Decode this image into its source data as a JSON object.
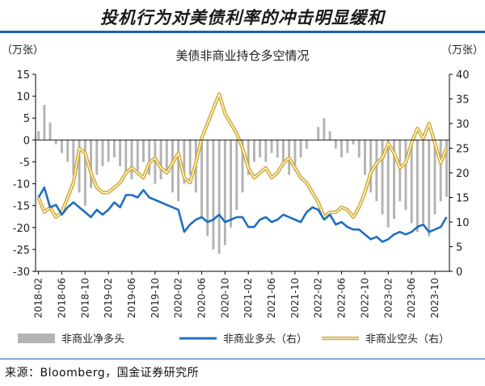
{
  "page": {
    "headline": "投机行为对美债利率的冲击明显缓和",
    "source": "来源：Bloomberg，国金证券研究所"
  },
  "chart_data": {
    "type": "line",
    "title": "美债非商业持仓多空情况",
    "left_unit": "（万张）",
    "right_unit": "（万张）",
    "left_axis": {
      "ylim": [
        -30,
        15
      ],
      "ticks": [
        15,
        10,
        5,
        0,
        -5,
        -10,
        -15,
        -20,
        -25,
        -30
      ]
    },
    "right_axis": {
      "ylim": [
        0,
        40
      ],
      "ticks": [
        40,
        35,
        30,
        25,
        20,
        15,
        10,
        5,
        0
      ]
    },
    "x_labels": [
      "2018-02",
      "2018-06",
      "2018-10",
      "2019-02",
      "2019-06",
      "2019-10",
      "2020-02",
      "2020-06",
      "2020-10",
      "2021-02",
      "2021-06",
      "2021-10",
      "2022-02",
      "2022-06",
      "2022-10",
      "2023-02",
      "2023-06",
      "2023-10"
    ],
    "x_range": [
      "2018-02",
      "2023-12"
    ],
    "legend_position": "bottom",
    "grid": false,
    "colors": {
      "net": "#b3b3b3",
      "long": "#1f6fbf",
      "short": "#f2c12e",
      "short_edge": "#c9a227"
    },
    "series": [
      {
        "name": "非商业净多头",
        "axis": "left",
        "kind": "bar",
        "points": [
          [
            "2018-02",
            2
          ],
          [
            "2018-03",
            8
          ],
          [
            "2018-04",
            4
          ],
          [
            "2018-05",
            -1
          ],
          [
            "2018-06",
            -3
          ],
          [
            "2018-07",
            -5
          ],
          [
            "2018-08",
            -8
          ],
          [
            "2018-09",
            -12
          ],
          [
            "2018-10",
            -15
          ],
          [
            "2018-11",
            -11
          ],
          [
            "2018-12",
            -8
          ],
          [
            "2019-01",
            -6
          ],
          [
            "2019-02",
            -5
          ],
          [
            "2019-03",
            -4
          ],
          [
            "2019-04",
            -6
          ],
          [
            "2019-05",
            -8
          ],
          [
            "2019-06",
            -9
          ],
          [
            "2019-07",
            -7
          ],
          [
            "2019-08",
            -5
          ],
          [
            "2019-09",
            -8
          ],
          [
            "2019-10",
            -10
          ],
          [
            "2019-11",
            -9
          ],
          [
            "2019-12",
            -7
          ],
          [
            "2020-01",
            -12
          ],
          [
            "2020-02",
            -14
          ],
          [
            "2020-03",
            -10
          ],
          [
            "2020-04",
            -8
          ],
          [
            "2020-05",
            -12
          ],
          [
            "2020-06",
            -18
          ],
          [
            "2020-07",
            -22
          ],
          [
            "2020-08",
            -25
          ],
          [
            "2020-09",
            -26
          ],
          [
            "2020-10",
            -24
          ],
          [
            "2020-11",
            -20
          ],
          [
            "2020-12",
            -16
          ],
          [
            "2021-01",
            -12
          ],
          [
            "2021-02",
            -8
          ],
          [
            "2021-03",
            -5
          ],
          [
            "2021-04",
            -4
          ],
          [
            "2021-05",
            -5
          ],
          [
            "2021-06",
            -3
          ],
          [
            "2021-07",
            -4
          ],
          [
            "2021-08",
            -6
          ],
          [
            "2021-09",
            -8
          ],
          [
            "2021-10",
            -7
          ],
          [
            "2021-11",
            -4
          ],
          [
            "2021-12",
            -2
          ],
          [
            "2022-01",
            0
          ],
          [
            "2022-02",
            3
          ],
          [
            "2022-03",
            5
          ],
          [
            "2022-04",
            2
          ],
          [
            "2022-05",
            -2
          ],
          [
            "2022-06",
            -4
          ],
          [
            "2022-07",
            -3
          ],
          [
            "2022-08",
            -1
          ],
          [
            "2022-09",
            -4
          ],
          [
            "2022-10",
            -8
          ],
          [
            "2022-11",
            -12
          ],
          [
            "2022-12",
            -14
          ],
          [
            "2023-01",
            -17
          ],
          [
            "2023-02",
            -20
          ],
          [
            "2023-03",
            -18
          ],
          [
            "2023-04",
            -14
          ],
          [
            "2023-05",
            -16
          ],
          [
            "2023-06",
            -19
          ],
          [
            "2023-07",
            -21
          ],
          [
            "2023-08",
            -19
          ],
          [
            "2023-09",
            -22
          ],
          [
            "2023-10",
            -17
          ],
          [
            "2023-11",
            -14
          ],
          [
            "2023-12",
            -13
          ]
        ]
      },
      {
        "name": "非商业多头（右）",
        "axis": "right",
        "kind": "line",
        "points": [
          [
            "2018-02",
            15
          ],
          [
            "2018-03",
            17
          ],
          [
            "2018-04",
            13
          ],
          [
            "2018-05",
            13.5
          ],
          [
            "2018-06",
            11.5
          ],
          [
            "2018-07",
            13
          ],
          [
            "2018-08",
            14
          ],
          [
            "2018-09",
            13
          ],
          [
            "2018-10",
            12
          ],
          [
            "2018-11",
            11
          ],
          [
            "2018-12",
            12.5
          ],
          [
            "2019-01",
            11.5
          ],
          [
            "2019-02",
            12.5
          ],
          [
            "2019-03",
            14
          ],
          [
            "2019-04",
            13
          ],
          [
            "2019-05",
            15.5
          ],
          [
            "2019-06",
            15.5
          ],
          [
            "2019-07",
            15
          ],
          [
            "2019-08",
            16.5
          ],
          [
            "2019-09",
            15
          ],
          [
            "2019-10",
            14.5
          ],
          [
            "2019-11",
            14
          ],
          [
            "2019-12",
            13.5
          ],
          [
            "2020-01",
            13
          ],
          [
            "2020-02",
            12.5
          ],
          [
            "2020-03",
            8
          ],
          [
            "2020-04",
            9.5
          ],
          [
            "2020-05",
            10.5
          ],
          [
            "2020-06",
            11
          ],
          [
            "2020-07",
            10
          ],
          [
            "2020-08",
            10.5
          ],
          [
            "2020-09",
            11.5
          ],
          [
            "2020-10",
            10
          ],
          [
            "2020-11",
            10.5
          ],
          [
            "2020-12",
            11
          ],
          [
            "2021-01",
            11
          ],
          [
            "2021-02",
            9
          ],
          [
            "2021-03",
            9
          ],
          [
            "2021-04",
            10.5
          ],
          [
            "2021-05",
            11
          ],
          [
            "2021-06",
            10
          ],
          [
            "2021-07",
            10.5
          ],
          [
            "2021-08",
            11.5
          ],
          [
            "2021-09",
            11
          ],
          [
            "2021-10",
            10.5
          ],
          [
            "2021-11",
            10
          ],
          [
            "2021-12",
            12
          ],
          [
            "2022-01",
            13
          ],
          [
            "2022-02",
            12.5
          ],
          [
            "2022-03",
            10.5
          ],
          [
            "2022-04",
            11.5
          ],
          [
            "2022-05",
            9.5
          ],
          [
            "2022-06",
            10
          ],
          [
            "2022-07",
            9
          ],
          [
            "2022-08",
            8.5
          ],
          [
            "2022-09",
            8.5
          ],
          [
            "2022-10",
            7.5
          ],
          [
            "2022-11",
            6.5
          ],
          [
            "2022-12",
            7
          ],
          [
            "2023-01",
            6
          ],
          [
            "2023-02",
            6.5
          ],
          [
            "2023-03",
            7.5
          ],
          [
            "2023-04",
            8
          ],
          [
            "2023-05",
            7.5
          ],
          [
            "2023-06",
            8
          ],
          [
            "2023-07",
            9
          ],
          [
            "2023-08",
            9.5
          ],
          [
            "2023-09",
            8
          ],
          [
            "2023-10",
            8.5
          ],
          [
            "2023-11",
            9
          ],
          [
            "2023-12",
            11
          ]
        ]
      },
      {
        "name": "非商业空头（右）",
        "axis": "right",
        "kind": "line",
        "points": [
          [
            "2018-02",
            15
          ],
          [
            "2018-03",
            12
          ],
          [
            "2018-04",
            13
          ],
          [
            "2018-05",
            11
          ],
          [
            "2018-06",
            12
          ],
          [
            "2018-07",
            15
          ],
          [
            "2018-08",
            18
          ],
          [
            "2018-09",
            25
          ],
          [
            "2018-10",
            24
          ],
          [
            "2018-11",
            20
          ],
          [
            "2018-12",
            17
          ],
          [
            "2019-01",
            16
          ],
          [
            "2019-02",
            16
          ],
          [
            "2019-03",
            17
          ],
          [
            "2019-04",
            18
          ],
          [
            "2019-05",
            20
          ],
          [
            "2019-06",
            21
          ],
          [
            "2019-07",
            20
          ],
          [
            "2019-08",
            19
          ],
          [
            "2019-09",
            22
          ],
          [
            "2019-10",
            23
          ],
          [
            "2019-11",
            21
          ],
          [
            "2019-12",
            20
          ],
          [
            "2020-01",
            22
          ],
          [
            "2020-02",
            24
          ],
          [
            "2020-03",
            19
          ],
          [
            "2020-04",
            18
          ],
          [
            "2020-05",
            22
          ],
          [
            "2020-06",
            27
          ],
          [
            "2020-07",
            30
          ],
          [
            "2020-08",
            33
          ],
          [
            "2020-09",
            36
          ],
          [
            "2020-10",
            32
          ],
          [
            "2020-11",
            30
          ],
          [
            "2020-12",
            28
          ],
          [
            "2021-01",
            25
          ],
          [
            "2021-02",
            21
          ],
          [
            "2021-03",
            19
          ],
          [
            "2021-04",
            20
          ],
          [
            "2021-05",
            21
          ],
          [
            "2021-06",
            19
          ],
          [
            "2021-07",
            20
          ],
          [
            "2021-08",
            22
          ],
          [
            "2021-09",
            23
          ],
          [
            "2021-10",
            21
          ],
          [
            "2021-11",
            19
          ],
          [
            "2021-12",
            18
          ],
          [
            "2022-01",
            16
          ],
          [
            "2022-02",
            14
          ],
          [
            "2022-03",
            11
          ],
          [
            "2022-04",
            12
          ],
          [
            "2022-05",
            12
          ],
          [
            "2022-06",
            13
          ],
          [
            "2022-07",
            12.5
          ],
          [
            "2022-08",
            11
          ],
          [
            "2022-09",
            13
          ],
          [
            "2022-10",
            16
          ],
          [
            "2022-11",
            20
          ],
          [
            "2022-12",
            22
          ],
          [
            "2023-01",
            23
          ],
          [
            "2023-02",
            26
          ],
          [
            "2023-03",
            24
          ],
          [
            "2023-04",
            21
          ],
          [
            "2023-05",
            22
          ],
          [
            "2023-06",
            26
          ],
          [
            "2023-07",
            29
          ],
          [
            "2023-08",
            27
          ],
          [
            "2023-09",
            30
          ],
          [
            "2023-10",
            26
          ],
          [
            "2023-11",
            22
          ],
          [
            "2023-12",
            25
          ]
        ]
      }
    ]
  }
}
